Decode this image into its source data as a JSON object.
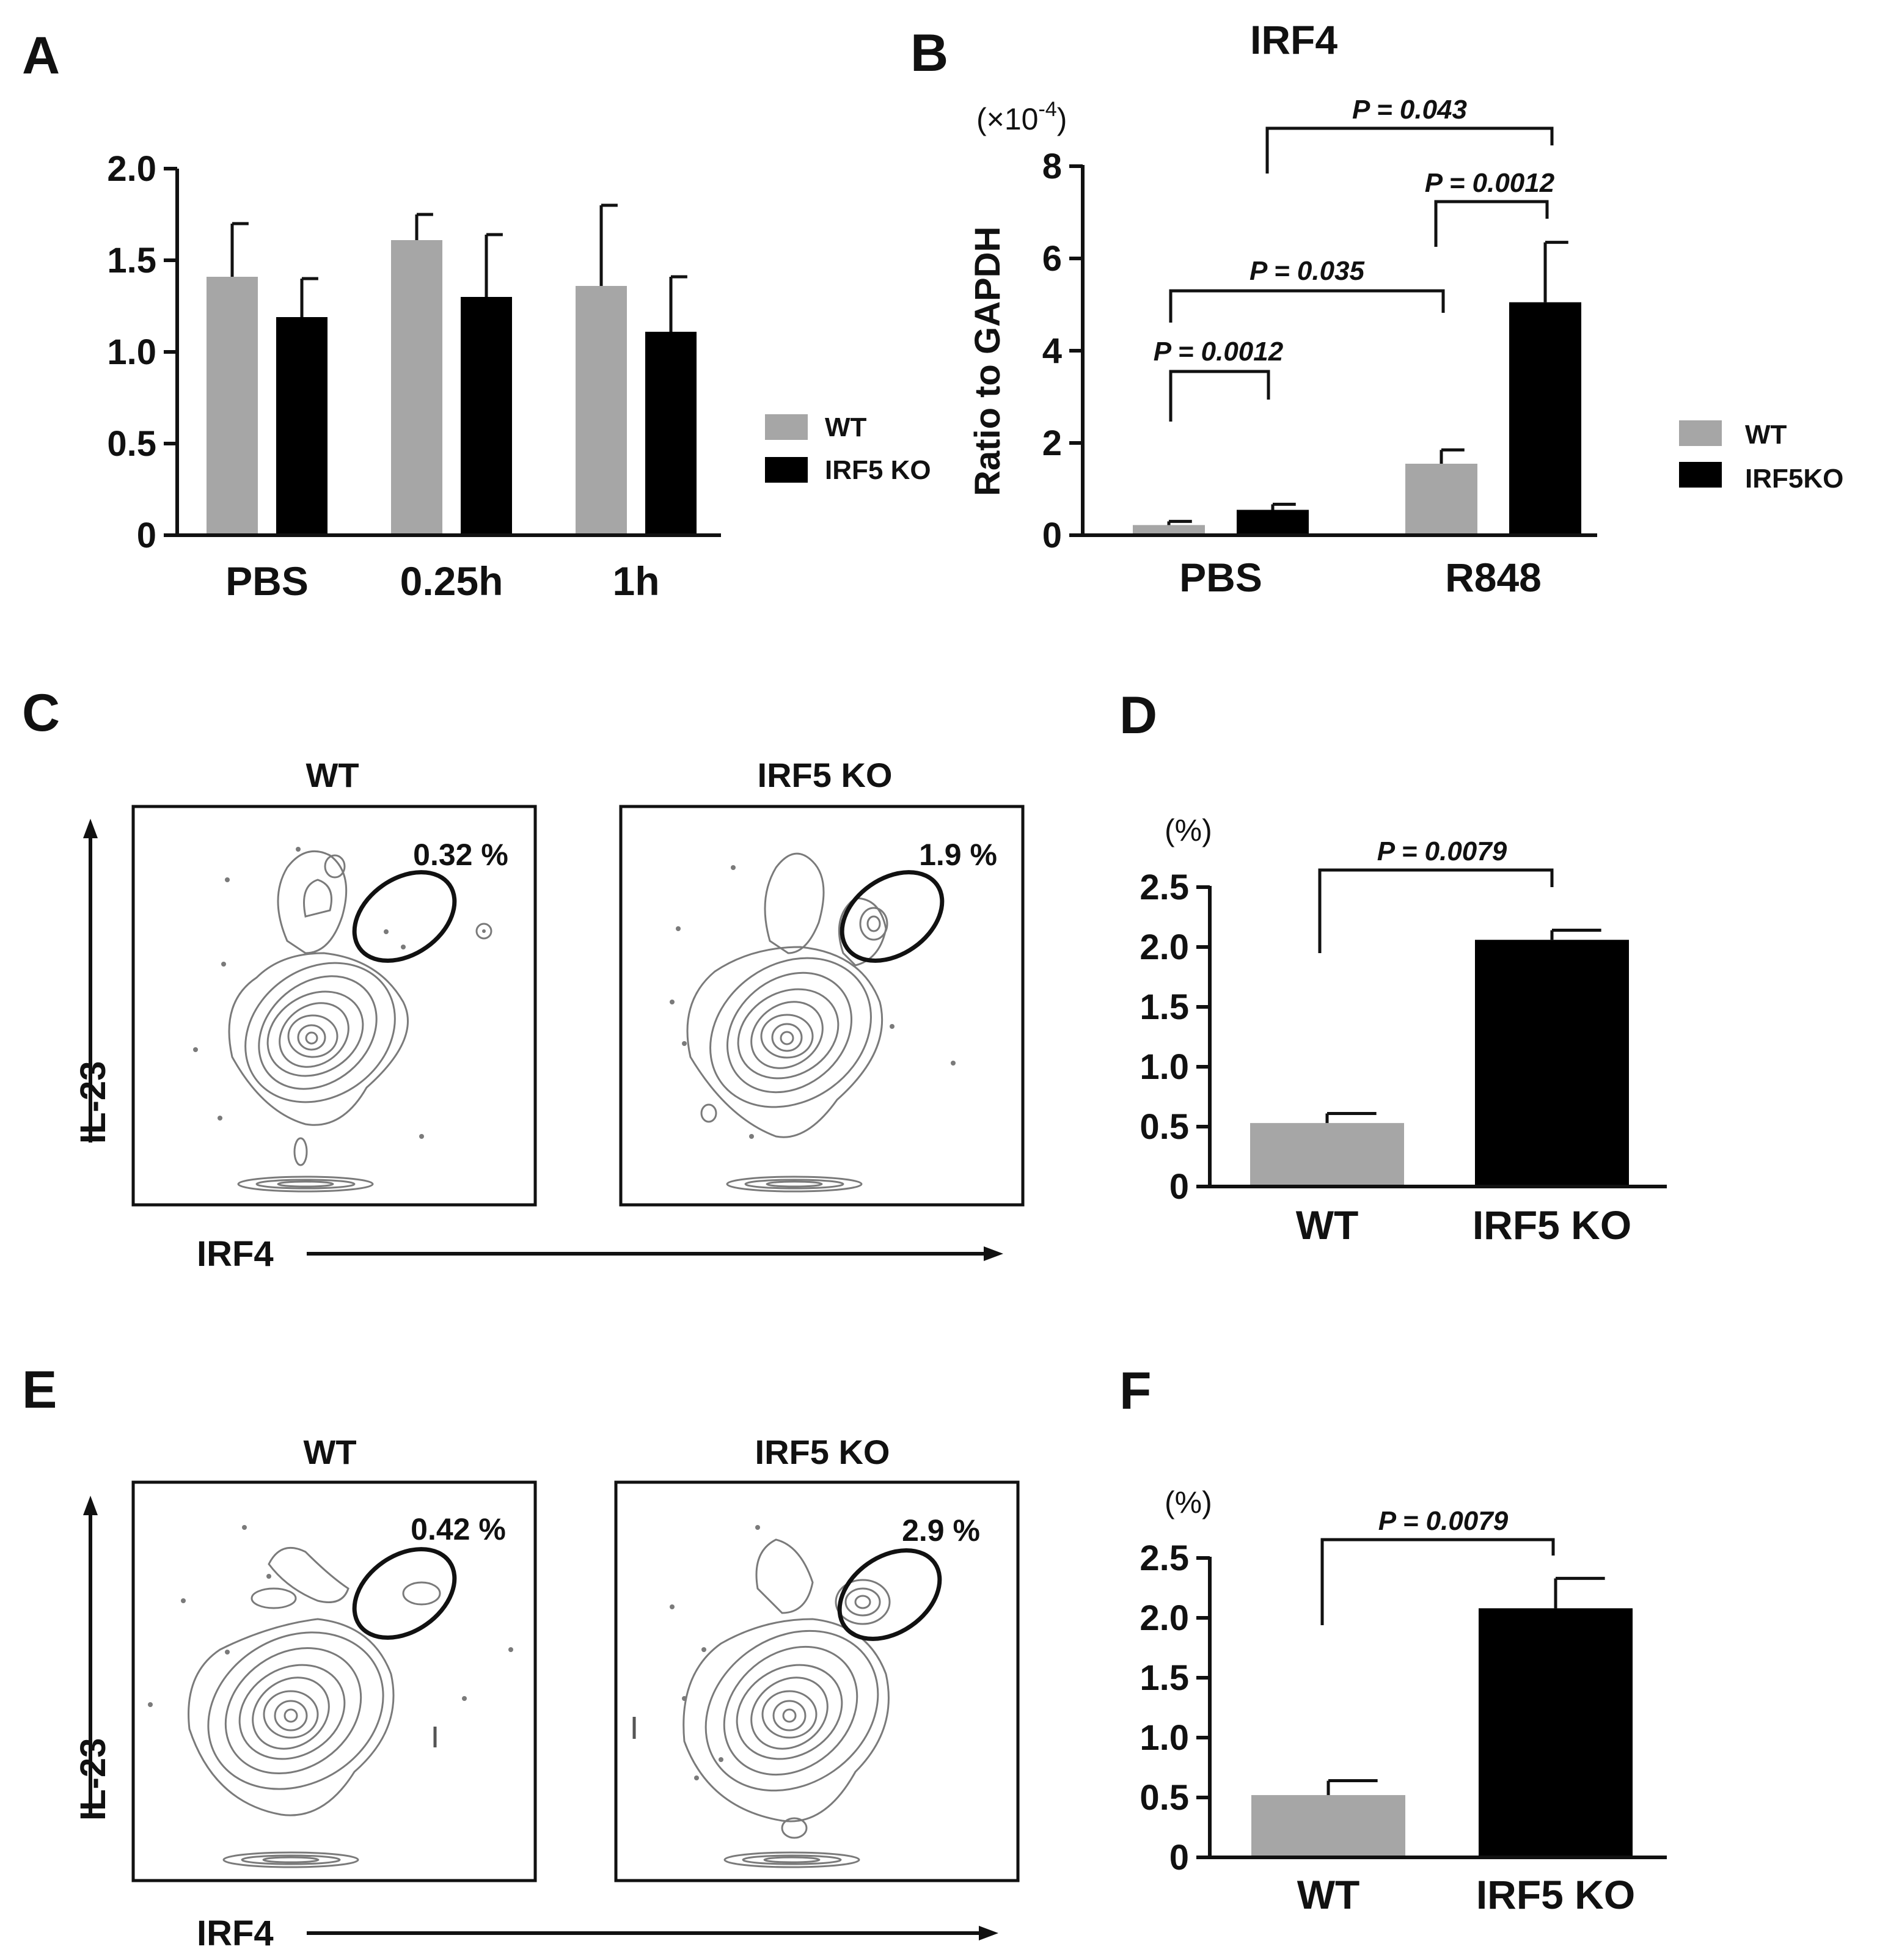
{
  "colors": {
    "wt": "#a6a6a6",
    "ko": "#000000",
    "axis": "#111111",
    "contour": "#7a7a7a"
  },
  "panel_labels": {
    "A": "A",
    "B": "B",
    "C": "C",
    "D": "D",
    "E": "E",
    "F": "F"
  },
  "chart_data": [
    {
      "id": "A",
      "type": "bar",
      "title": "",
      "categories": [
        "PBS",
        "0.25h",
        "1h"
      ],
      "series": [
        {
          "name": "WT",
          "values": [
            1.41,
            1.61,
            1.36
          ],
          "errors": [
            0.29,
            0.14,
            0.44
          ]
        },
        {
          "name": "IRF5 KO",
          "values": [
            1.19,
            1.3,
            1.11
          ],
          "errors": [
            0.21,
            0.34,
            0.3
          ]
        }
      ],
      "ylim": [
        0,
        2.0
      ],
      "yticks": [
        0,
        0.5,
        1.0,
        1.5,
        2.0
      ],
      "ytick_labels": [
        "0",
        "0.5",
        "1.0",
        "1.5",
        "2.0"
      ],
      "xlabel": "",
      "ylabel": "",
      "legend": {
        "position": "right",
        "entries": [
          "WT",
          "IRF5 KO"
        ]
      }
    },
    {
      "id": "B",
      "type": "bar",
      "title": "IRF4",
      "ylabel": "Ratio to GAPDH",
      "yunit": "(×10",
      "yunit_exp": "-4",
      "yunit_close": ")",
      "categories": [
        "PBS",
        "R848"
      ],
      "series": [
        {
          "name": "WT",
          "values": [
            0.22,
            1.55
          ],
          "errors": [
            0.08,
            0.3
          ]
        },
        {
          "name": "IRF5KO",
          "values": [
            0.55,
            5.05
          ],
          "errors": [
            0.12,
            1.3
          ]
        }
      ],
      "ylim": [
        0,
        8
      ],
      "yticks": [
        0,
        2,
        4,
        6,
        8
      ],
      "ytick_labels": [
        "0",
        "2",
        "4",
        "6",
        "8"
      ],
      "legend": {
        "position": "right",
        "entries": [
          "WT",
          "IRF5KO"
        ]
      },
      "annotations": [
        {
          "label": "P = 0.043",
          "from": "PBS IRF5KO",
          "to": "R848 IRF5KO"
        },
        {
          "label": "P = 0.0012",
          "from": "R848 WT",
          "to": "R848 IRF5KO"
        },
        {
          "label": "P = 0.035",
          "from": "PBS WT",
          "to": "R848 WT"
        },
        {
          "label": "P = 0.0012",
          "from": "PBS WT",
          "to": "PBS IRF5KO"
        }
      ]
    },
    {
      "id": "D",
      "type": "bar",
      "categories": [
        "WT",
        "IRF5 KO"
      ],
      "values": [
        0.53,
        2.06
      ],
      "errors": [
        0.08,
        0.08
      ],
      "ylim": [
        0,
        2.5
      ],
      "yticks": [
        0,
        0.5,
        1.0,
        1.5,
        2.0,
        2.5
      ],
      "ytick_labels": [
        "0",
        "0.5",
        "1.0",
        "1.5",
        "2.0",
        "2.5"
      ],
      "yunit": "(%)",
      "annotations": [
        {
          "label": "P = 0.0079",
          "from": "WT",
          "to": "IRF5 KO"
        }
      ]
    },
    {
      "id": "F",
      "type": "bar",
      "categories": [
        "WT",
        "IRF5 KO"
      ],
      "values": [
        0.52,
        2.08
      ],
      "errors": [
        0.12,
        0.25
      ],
      "ylim": [
        0,
        2.5
      ],
      "yticks": [
        0,
        0.5,
        1.0,
        1.5,
        2.0,
        2.5
      ],
      "ytick_labels": [
        "0",
        "0.5",
        "1.0",
        "1.5",
        "2.0",
        "2.5"
      ],
      "yunit": "(%)",
      "annotations": [
        {
          "label": "P = 0.0079",
          "from": "WT",
          "to": "IRF5 KO"
        }
      ]
    }
  ],
  "flow": {
    "C": {
      "x_axis_label": "IRF4",
      "y_axis_label": "IL-23",
      "plots": [
        {
          "title": "WT",
          "gate_percent": "0.32 %"
        },
        {
          "title": "IRF5 KO",
          "gate_percent": "1.9 %"
        }
      ]
    },
    "E": {
      "x_axis_label": "IRF4",
      "y_axis_label": "IL-23",
      "plots": [
        {
          "title": "WT",
          "gate_percent": "0.42 %"
        },
        {
          "title": "IRF5 KO",
          "gate_percent": "2.9 %"
        }
      ]
    }
  }
}
